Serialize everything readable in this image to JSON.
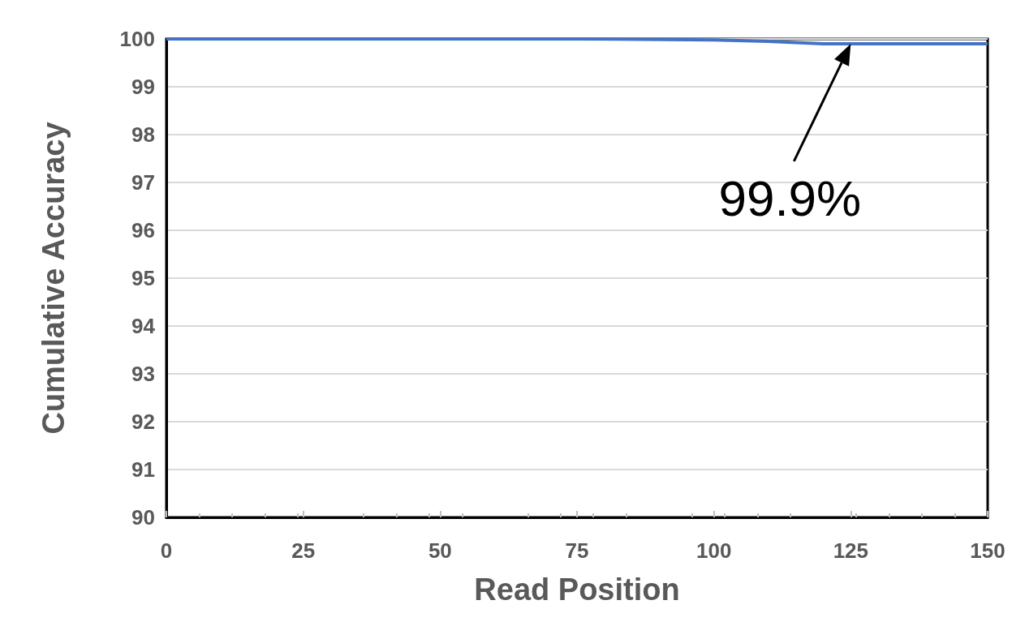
{
  "chart_data": {
    "type": "line",
    "xlabel": "Read Position",
    "ylabel": "Cumulative Accuracy",
    "x": [
      0,
      25,
      50,
      75,
      100,
      110,
      120,
      130,
      140,
      150
    ],
    "series": [
      {
        "color": "#4472c4",
        "values": [
          100,
          100,
          100,
          100,
          99.98,
          99.95,
          99.9,
          99.9,
          99.9,
          99.9
        ]
      }
    ],
    "xlim": [
      0,
      150
    ],
    "xticks": [
      0,
      25,
      50,
      75,
      100,
      125,
      150
    ],
    "ylim": [
      90,
      100
    ],
    "yticks": [
      90,
      91,
      92,
      93,
      94,
      95,
      96,
      97,
      98,
      99,
      100
    ],
    "grid": "y",
    "marker": "none",
    "line_style": "solid",
    "annotations": [
      {
        "text": "99.9%",
        "x": 125,
        "y": 99.9
      }
    ]
  }
}
